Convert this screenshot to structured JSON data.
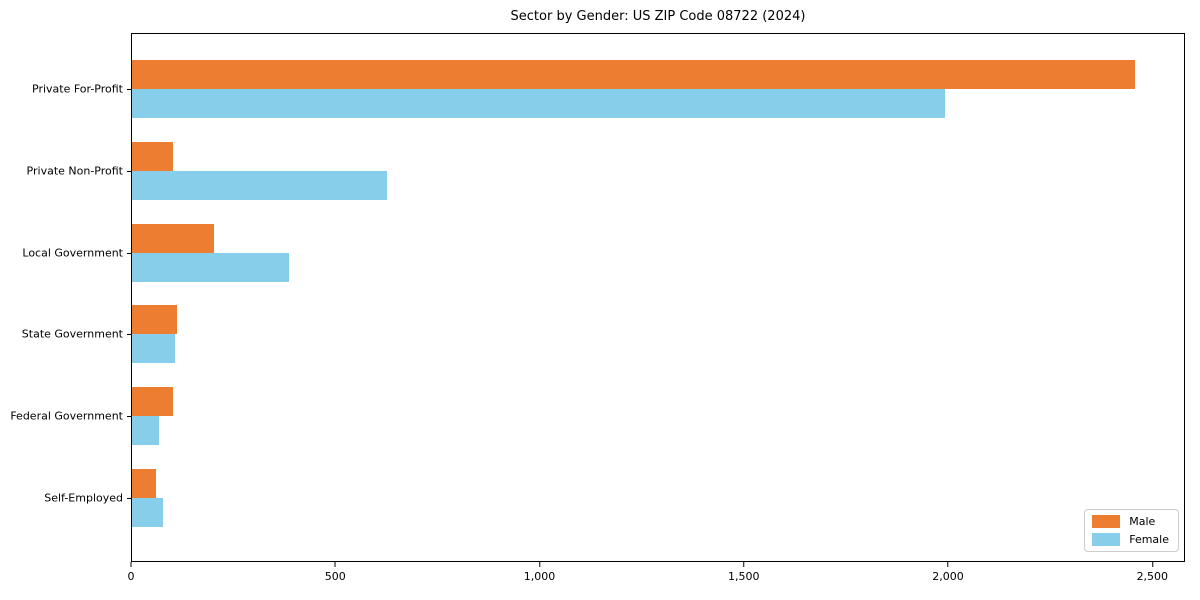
{
  "title": "Sector by Gender: US ZIP Code 08722 (2024)",
  "chart_data": {
    "type": "bar",
    "orientation": "horizontal",
    "title": "Sector by Gender: US ZIP Code 08722 (2024)",
    "xlabel": "",
    "ylabel": "",
    "categories": [
      "Private For-Profit",
      "Private Non-Profit",
      "Local Government",
      "State Government",
      "Federal Government",
      "Self-Employed"
    ],
    "series": [
      {
        "name": "Male",
        "color": "#ED7D31",
        "values": [
          2460,
          100,
          200,
          110,
          100,
          60
        ]
      },
      {
        "name": "Female",
        "color": "#87CEEB",
        "values": [
          1995,
          625,
          385,
          105,
          65,
          75
        ]
      }
    ],
    "xlim": [
      0,
      2580
    ],
    "xticks": [
      0,
      500,
      1000,
      1500,
      2000,
      2500
    ],
    "xtick_labels": [
      "0",
      "500",
      "1,000",
      "1,500",
      "2,000",
      "2,500"
    ],
    "grid": false,
    "legend_position": "lower right",
    "bar_order_in_group": [
      "Male",
      "Female"
    ]
  }
}
